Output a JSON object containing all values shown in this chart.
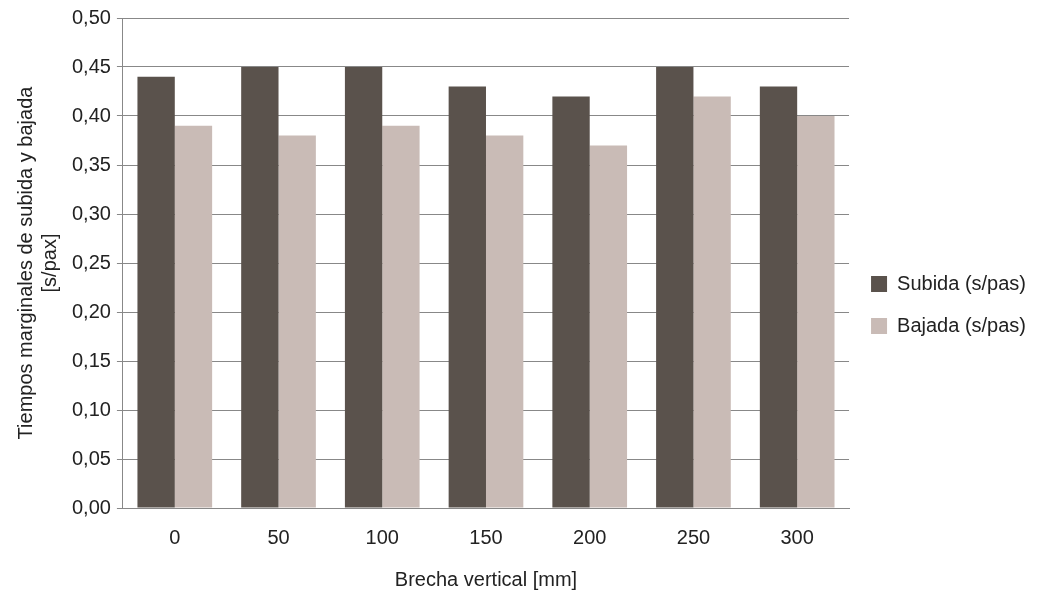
{
  "chart_data": {
    "type": "bar",
    "xlabel": "Brecha vertical [mm]",
    "ylabel": "Tiempos marginales de subida y bajada\n[s/pax]",
    "categories": [
      "0",
      "50",
      "100",
      "150",
      "200",
      "250",
      "300"
    ],
    "series": [
      {
        "name": "Subida (s/pas)",
        "color": "#5a524c",
        "values": [
          0.44,
          0.45,
          0.45,
          0.43,
          0.42,
          0.45,
          0.43
        ]
      },
      {
        "name": "Bajada (s/pas)",
        "color": "#c9bbb6",
        "values": [
          0.39,
          0.38,
          0.39,
          0.38,
          0.37,
          0.42,
          0.4
        ]
      }
    ],
    "ylim": [
      0,
      0.5
    ],
    "yticks": [
      {
        "value": 0,
        "label": "0,00"
      },
      {
        "value": 0.05,
        "label": "0,05"
      },
      {
        "value": 0.1,
        "label": "0,10"
      },
      {
        "value": 0.15,
        "label": "0,15"
      },
      {
        "value": 0.2,
        "label": "0,20"
      },
      {
        "value": 0.25,
        "label": "0,25"
      },
      {
        "value": 0.3,
        "label": "0,30"
      },
      {
        "value": 0.35,
        "label": "0,35"
      },
      {
        "value": 0.4,
        "label": "0,40"
      },
      {
        "value": 0.45,
        "label": "0,45"
      },
      {
        "value": 0.5,
        "label": "0,50"
      }
    ],
    "grid": "y",
    "legend": "right"
  }
}
